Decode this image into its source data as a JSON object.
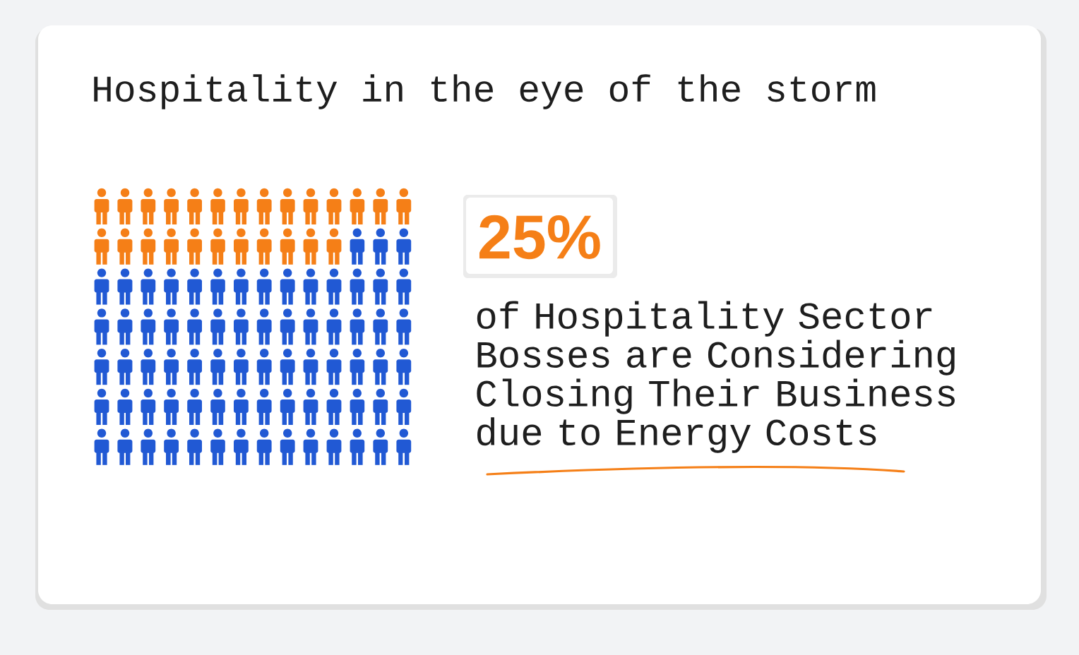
{
  "chart_data": {
    "type": "other",
    "title": "Hospitality in the eye of the storm",
    "values": [
      25
    ],
    "value_labels": [
      "25%"
    ],
    "annotations": [
      "of Hospitality Sector Bosses are Considering Closing Their Business due to Energy Costs"
    ]
  }
}
